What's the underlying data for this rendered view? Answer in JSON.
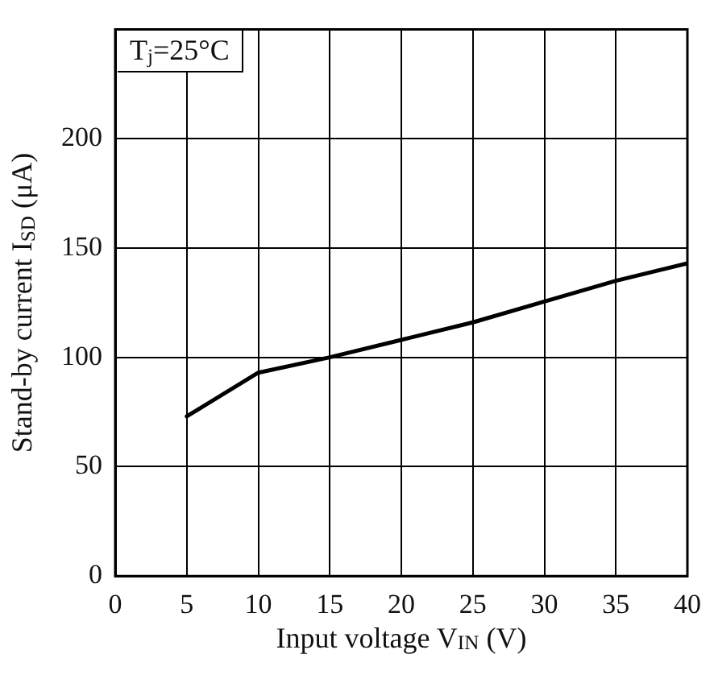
{
  "chart_data": {
    "type": "line",
    "xlabel": "Input voltage V$_{IN}$ (V)",
    "ylabel": "Stand-by current I$_{SD}$ (μA)",
    "annotations": [
      "T$_{j}$=25°C"
    ],
    "x": [
      5,
      10,
      15,
      20,
      25,
      30,
      35,
      40
    ],
    "series": [
      {
        "color": "#000000",
        "values": [
          73,
          93,
          100,
          108,
          116,
          125.5,
          135,
          143
        ]
      }
    ],
    "xlim": [
      0,
      40
    ],
    "xticks": [
      0,
      5,
      10,
      15,
      20,
      25,
      30,
      35,
      40
    ],
    "ylim": [
      0,
      250
    ],
    "yticks": [
      0,
      50,
      100,
      150,
      200
    ],
    "grid": true,
    "legend": false,
    "marker": "none",
    "line_style": "solid"
  }
}
